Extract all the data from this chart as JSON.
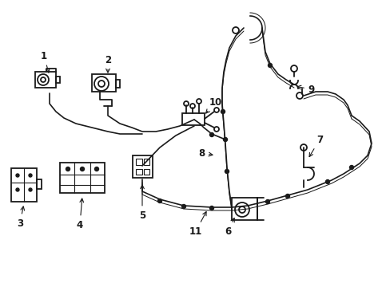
{
  "bg_color": "#ffffff",
  "line_color": "#1a1a1a",
  "label_color": "#1a1a1a",
  "fig_width": 4.89,
  "fig_height": 3.6,
  "dpi": 100,
  "label_fontsize": 8.5,
  "lw_main": 1.2,
  "lw_thin": 0.7,
  "lw_comp": 1.3
}
